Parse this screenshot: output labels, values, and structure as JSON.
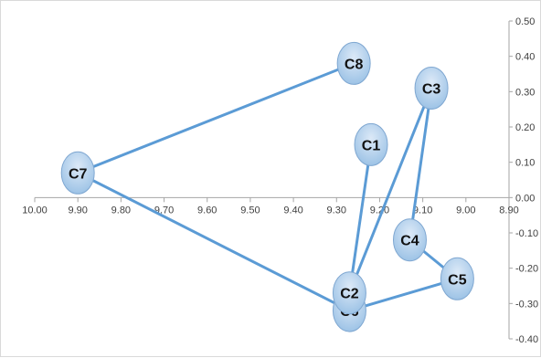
{
  "chart_data": {
    "type": "scatter",
    "title": "",
    "xlabel": "",
    "ylabel": "",
    "x_reversed": true,
    "xlim": [
      8.9,
      10.0
    ],
    "ylim": [
      -0.4,
      0.5
    ],
    "x_ticks": [
      "10.00",
      "9.90",
      "9.80",
      "9.70",
      "9.60",
      "9.50",
      "9.40",
      "9.30",
      "9.20",
      "9.10",
      "9.00",
      "8.90"
    ],
    "x_tick_values": [
      10.0,
      9.9,
      9.8,
      9.7,
      9.6,
      9.5,
      9.4,
      9.3,
      9.2,
      9.1,
      9.0,
      8.9
    ],
    "y_ticks": [
      "0.50",
      "0.40",
      "0.30",
      "0.20",
      "0.10",
      "0.00",
      "-0.10",
      "-0.20",
      "-0.30",
      "-0.40"
    ],
    "y_tick_values": [
      0.5,
      0.4,
      0.3,
      0.2,
      0.1,
      0.0,
      -0.1,
      -0.2,
      -0.3,
      -0.4
    ],
    "y_axis_side": "right",
    "grid": false,
    "legend": "none",
    "points": [
      {
        "label": "C1",
        "x": 9.22,
        "y": 0.15
      },
      {
        "label": "C2",
        "x": 9.27,
        "y": -0.27
      },
      {
        "label": "C3",
        "x": 9.08,
        "y": 0.31
      },
      {
        "label": "C4",
        "x": 9.13,
        "y": -0.12
      },
      {
        "label": "C5",
        "x": 9.02,
        "y": -0.23
      },
      {
        "label": "C6",
        "x": 9.27,
        "y": -0.32
      },
      {
        "label": "C7",
        "x": 9.9,
        "y": 0.07
      },
      {
        "label": "C8",
        "x": 9.26,
        "y": 0.38
      }
    ],
    "edges": [
      [
        "C8",
        "C7"
      ],
      [
        "C7",
        "C6"
      ],
      [
        "C6",
        "C5"
      ],
      [
        "C5",
        "C4"
      ],
      [
        "C4",
        "C3"
      ],
      [
        "C3",
        "C2"
      ],
      [
        "C2",
        "C1"
      ]
    ],
    "colors": {
      "line": "#5b9bd5",
      "node_fill_top": "#dce9f7",
      "node_fill_bottom": "#9dc3e6",
      "node_stroke": "#7fa7d1"
    }
  }
}
